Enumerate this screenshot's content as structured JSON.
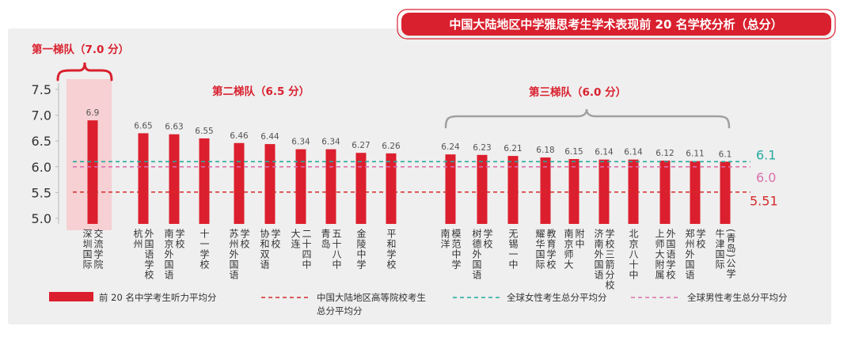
{
  "chart_data": {
    "type": "bar",
    "title": "中国大陆地区中学雅思考生学术表现前 20 名学校分析（总分）",
    "xlabel": "",
    "ylabel": "",
    "ylim": [
      5.0,
      7.5
    ],
    "yticks": [
      5.0,
      5.5,
      6.0,
      6.5,
      7.0,
      7.5
    ],
    "ytick_labels": [
      "5.0",
      "5.5",
      "6.0",
      "6.5",
      "7.0",
      "7.5"
    ],
    "grid": false,
    "legend_position": "bottom",
    "categories": [
      {
        "left": "深圳国际",
        "right": "交流学院"
      },
      {
        "left": "杭州",
        "right": "外国语学校"
      },
      {
        "left": "南京外国语",
        "right": "学校"
      },
      {
        "left": "十一学校",
        "right": ""
      },
      {
        "left": "苏州外国语",
        "right": "学校"
      },
      {
        "left": "协和双语",
        "right": "学校"
      },
      {
        "left": "大连",
        "right": "二十四中"
      },
      {
        "left": "青岛",
        "right": "五十八中"
      },
      {
        "left": "金陵中学",
        "right": ""
      },
      {
        "left": "平和学校",
        "right": ""
      },
      {
        "left": "南洋",
        "right": "模范中学"
      },
      {
        "left": "树德外国语",
        "right": "学校"
      },
      {
        "left": "无锡一中",
        "right": ""
      },
      {
        "left": "耀华国际",
        "right": "教育学校"
      },
      {
        "left": "南京师大",
        "right": "附中"
      },
      {
        "left": "济南外国语",
        "right": "学校三箭分校"
      },
      {
        "left": "北京八十中",
        "right": ""
      },
      {
        "left": "上师大附属",
        "right": "外国语学校"
      },
      {
        "left": "郑州外国语",
        "right": "学校"
      },
      {
        "left": "牛津国际",
        "right": "(青岛)公学"
      }
    ],
    "series": [
      {
        "name": "前 20 名中学考生听力平均分",
        "color": "#dc1f2e",
        "values": [
          6.9,
          6.65,
          6.63,
          6.55,
          6.46,
          6.44,
          6.34,
          6.34,
          6.27,
          6.26,
          6.24,
          6.23,
          6.21,
          6.18,
          6.15,
          6.14,
          6.14,
          6.12,
          6.11,
          6.1
        ]
      }
    ],
    "reference_lines": [
      {
        "name_lines": [
          "中国大陆地区高等院校考生",
          "总分平均分"
        ],
        "value": 5.51,
        "label": "5.51",
        "color": "#d42a2a"
      },
      {
        "name_lines": [
          "全球女性考生总分平均分"
        ],
        "value": 6.1,
        "label": "6.1",
        "color": "#25a99f"
      },
      {
        "name_lines": [
          "全球男性考生总分平均分"
        ],
        "value": 6.0,
        "label": "6.0",
        "color": "#d971aa"
      }
    ],
    "tiers": [
      {
        "label": "第一梯队（7.0 分）",
        "from": 0,
        "to": 0
      },
      {
        "label": "第二梯队（6.5 分）",
        "from": 1,
        "to": 9
      },
      {
        "label": "第三梯队（6.0 分）",
        "from": 10,
        "to": 19
      }
    ],
    "colors": {
      "accent": "#d9202e",
      "panel": "#efefef",
      "highlight": "#f6d0d3",
      "bracket_gray": "#a0a0a0"
    }
  }
}
